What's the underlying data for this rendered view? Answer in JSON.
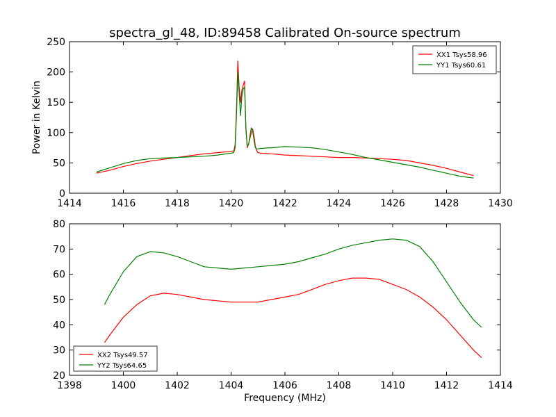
{
  "figure": {
    "title": "spectra_gl_48, ID:89458 Calibrated On-source spectrum"
  },
  "chart_data": [
    {
      "type": "line",
      "title": "spectra_gl_48, ID:89458 Calibrated On-source spectrum",
      "xlabel": "",
      "ylabel": "Power in Kelvin",
      "xlim": [
        1414,
        1430
      ],
      "ylim": [
        0,
        250
      ],
      "xticks": [
        "1414",
        "1416",
        "1418",
        "1420",
        "1422",
        "1424",
        "1426",
        "1428",
        "1430"
      ],
      "yticks": [
        "0",
        "50",
        "100",
        "150",
        "200",
        "250"
      ],
      "grid": false,
      "legend_placement": "top-right",
      "series": [
        {
          "name": "XX1 Tsys58.96",
          "color": "#ff0000",
          "x": [
            1415.0,
            1415.5,
            1416.0,
            1416.5,
            1417.0,
            1417.5,
            1418.0,
            1418.5,
            1419.0,
            1419.5,
            1420.0,
            1420.1,
            1420.15,
            1420.2,
            1420.25,
            1420.3,
            1420.35,
            1420.4,
            1420.45,
            1420.5,
            1420.55,
            1420.6,
            1420.65,
            1420.7,
            1420.75,
            1420.8,
            1420.85,
            1420.9,
            1420.95,
            1421.0,
            1421.1,
            1421.5,
            1422.0,
            1422.5,
            1423.0,
            1423.5,
            1424.0,
            1424.5,
            1425.0,
            1425.5,
            1426.0,
            1426.5,
            1427.0,
            1427.5,
            1428.0,
            1428.5,
            1429.0
          ],
          "values": [
            33,
            38,
            44,
            49,
            53,
            56,
            59,
            62,
            65,
            67,
            69,
            70,
            80,
            140,
            218,
            175,
            150,
            170,
            178,
            185,
            110,
            75,
            82,
            90,
            100,
            106,
            95,
            78,
            70,
            67,
            66,
            65,
            63,
            62,
            61,
            60,
            59,
            59,
            58,
            57,
            56,
            54,
            50,
            46,
            41,
            35,
            29
          ]
        },
        {
          "name": "YY1 Tsys60.61",
          "color": "#008000",
          "x": [
            1415.0,
            1415.5,
            1416.0,
            1416.5,
            1417.0,
            1417.5,
            1418.0,
            1418.5,
            1419.0,
            1419.5,
            1420.0,
            1420.1,
            1420.15,
            1420.2,
            1420.25,
            1420.3,
            1420.35,
            1420.4,
            1420.45,
            1420.5,
            1420.55,
            1420.6,
            1420.65,
            1420.7,
            1420.75,
            1420.8,
            1420.85,
            1420.9,
            1420.95,
            1421.0,
            1421.1,
            1421.5,
            1422.0,
            1422.5,
            1423.0,
            1423.5,
            1424.0,
            1424.5,
            1425.0,
            1425.5,
            1426.0,
            1426.5,
            1427.0,
            1427.5,
            1428.0,
            1428.5,
            1429.0
          ],
          "values": [
            35,
            42,
            49,
            54,
            57,
            58,
            59,
            60,
            61,
            63,
            66,
            67,
            75,
            130,
            200,
            165,
            128,
            160,
            172,
            175,
            105,
            78,
            80,
            95,
            108,
            103,
            88,
            75,
            73,
            73,
            74,
            75,
            77,
            76,
            75,
            72,
            68,
            64,
            59,
            55,
            51,
            47,
            43,
            38,
            33,
            28,
            25
          ]
        }
      ]
    },
    {
      "type": "line",
      "title": "",
      "xlabel": "Frequency (MHz)",
      "ylabel": "",
      "xlim": [
        1398,
        1414
      ],
      "ylim": [
        20,
        80
      ],
      "xticks": [
        "1398",
        "1400",
        "1402",
        "1404",
        "1406",
        "1408",
        "1410",
        "1412",
        "1414"
      ],
      "yticks": [
        "20",
        "30",
        "40",
        "50",
        "60",
        "70",
        "80"
      ],
      "grid": false,
      "legend_placement": "bottom-left",
      "series": [
        {
          "name": "XX2 Tsys49.57",
          "color": "#ff0000",
          "x": [
            1399.3,
            1399.5,
            1400.0,
            1400.5,
            1401.0,
            1401.5,
            1402.0,
            1402.5,
            1403.0,
            1403.5,
            1404.0,
            1404.5,
            1405.0,
            1405.5,
            1406.0,
            1406.5,
            1407.0,
            1407.5,
            1408.0,
            1408.5,
            1409.0,
            1409.5,
            1410.0,
            1410.5,
            1411.0,
            1411.5,
            1412.0,
            1412.5,
            1413.0,
            1413.3
          ],
          "values": [
            33,
            36,
            43,
            48,
            51.5,
            52.5,
            52,
            51,
            50,
            49.5,
            49,
            49,
            49,
            50,
            51,
            52,
            54,
            56,
            57.5,
            58.5,
            58.5,
            58,
            56,
            54,
            51,
            47,
            42,
            36,
            30,
            27
          ]
        },
        {
          "name": "YY2 Tsys64.65",
          "color": "#008000",
          "x": [
            1399.3,
            1399.5,
            1400.0,
            1400.5,
            1401.0,
            1401.5,
            1402.0,
            1402.5,
            1403.0,
            1403.5,
            1404.0,
            1404.5,
            1405.0,
            1405.5,
            1406.0,
            1406.5,
            1407.0,
            1407.5,
            1408.0,
            1408.5,
            1409.0,
            1409.5,
            1410.0,
            1410.5,
            1411.0,
            1411.5,
            1412.0,
            1412.5,
            1413.0,
            1413.3
          ],
          "values": [
            48,
            52,
            61,
            67,
            69,
            68.5,
            67,
            65,
            63,
            62.5,
            62,
            62.5,
            63,
            63.5,
            64,
            65,
            66.5,
            68,
            70,
            71.5,
            72.5,
            73.5,
            74,
            73.5,
            71,
            65,
            57,
            49,
            42,
            39
          ]
        }
      ]
    }
  ]
}
